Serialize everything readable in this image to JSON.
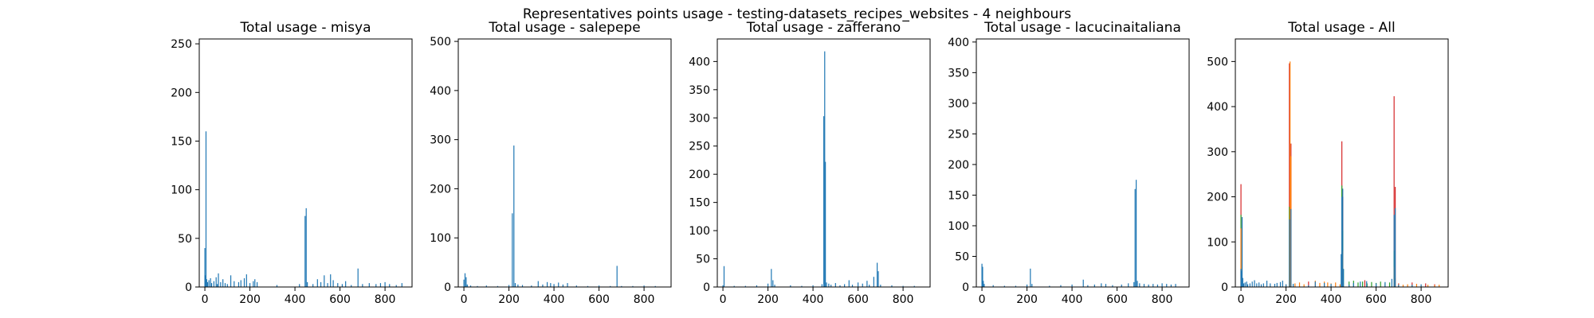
{
  "figure": {
    "title": "Representatives points usage - testing-datasets_recipes_websites - 4 neighbours"
  },
  "colors": {
    "blue": "#1f77b4",
    "orange": "#ff7f0e",
    "green": "#2ca02c",
    "red": "#d62728"
  },
  "chart_data": [
    {
      "type": "bar",
      "title": "Total usage - misya",
      "xlim": [
        -25,
        920
      ],
      "ylim": [
        0,
        255
      ],
      "xticks": [
        0,
        200,
        400,
        600,
        800
      ],
      "yticks": [
        0,
        50,
        100,
        150,
        200,
        250
      ],
      "series": [
        {
          "color": "blue",
          "bars": [
            [
              0,
              40
            ],
            [
              2,
              12
            ],
            [
              5,
              160
            ],
            [
              8,
              8
            ],
            [
              12,
              5
            ],
            [
              18,
              7
            ],
            [
              25,
              9
            ],
            [
              30,
              4
            ],
            [
              40,
              6
            ],
            [
              50,
              10
            ],
            [
              55,
              3
            ],
            [
              60,
              14
            ],
            [
              70,
              5
            ],
            [
              80,
              8
            ],
            [
              90,
              4
            ],
            [
              100,
              3
            ],
            [
              115,
              12
            ],
            [
              130,
              6
            ],
            [
              150,
              5
            ],
            [
              160,
              7
            ],
            [
              175,
              9
            ],
            [
              185,
              13
            ],
            [
              200,
              4
            ],
            [
              215,
              6
            ],
            [
              222,
              8
            ],
            [
              232,
              5
            ],
            [
              320,
              2
            ],
            [
              420,
              3
            ],
            [
              445,
              73
            ],
            [
              450,
              81
            ],
            [
              455,
              5
            ],
            [
              480,
              3
            ],
            [
              500,
              8
            ],
            [
              515,
              5
            ],
            [
              530,
              12
            ],
            [
              545,
              4
            ],
            [
              558,
              13
            ],
            [
              570,
              7
            ],
            [
              590,
              4
            ],
            [
              610,
              3
            ],
            [
              625,
              6
            ],
            [
              650,
              2
            ],
            [
              680,
              19
            ],
            [
              700,
              3
            ],
            [
              730,
              4
            ],
            [
              760,
              3
            ],
            [
              780,
              4
            ],
            [
              800,
              5
            ],
            [
              820,
              3
            ],
            [
              850,
              2
            ],
            [
              875,
              4
            ]
          ]
        }
      ]
    },
    {
      "type": "bar",
      "title": "Total usage - salepepe",
      "xlim": [
        -25,
        920
      ],
      "ylim": [
        0,
        505
      ],
      "xticks": [
        0,
        200,
        400,
        600,
        800
      ],
      "yticks": [
        0,
        100,
        200,
        300,
        400,
        500
      ],
      "series": [
        {
          "color": "blue",
          "bars": [
            [
              0,
              15
            ],
            [
              5,
              28
            ],
            [
              10,
              20
            ],
            [
              15,
              5
            ],
            [
              30,
              3
            ],
            [
              60,
              2
            ],
            [
              100,
              3
            ],
            [
              150,
              2
            ],
            [
              200,
              4
            ],
            [
              215,
              150
            ],
            [
              222,
              288
            ],
            [
              228,
              8
            ],
            [
              240,
              5
            ],
            [
              260,
              4
            ],
            [
              300,
              3
            ],
            [
              330,
              12
            ],
            [
              350,
              5
            ],
            [
              370,
              10
            ],
            [
              385,
              8
            ],
            [
              400,
              6
            ],
            [
              420,
              9
            ],
            [
              440,
              5
            ],
            [
              460,
              8
            ],
            [
              500,
              3
            ],
            [
              550,
              2
            ],
            [
              600,
              3
            ],
            [
              650,
              2
            ],
            [
              680,
              43
            ],
            [
              700,
              2
            ],
            [
              750,
              2
            ],
            [
              800,
              3
            ],
            [
              850,
              2
            ]
          ]
        }
      ]
    },
    {
      "type": "bar",
      "title": "Total usage - zafferano",
      "xlim": [
        -25,
        920
      ],
      "ylim": [
        0,
        440
      ],
      "xticks": [
        0,
        200,
        400,
        600,
        800
      ],
      "yticks": [
        0,
        50,
        100,
        150,
        200,
        250,
        300,
        350,
        400
      ],
      "series": [
        {
          "color": "blue",
          "bars": [
            [
              0,
              3
            ],
            [
              5,
              37
            ],
            [
              50,
              2
            ],
            [
              100,
              2
            ],
            [
              150,
              3
            ],
            [
              200,
              6
            ],
            [
              215,
              32
            ],
            [
              222,
              12
            ],
            [
              230,
              4
            ],
            [
              300,
              3
            ],
            [
              350,
              2
            ],
            [
              400,
              3
            ],
            [
              440,
              5
            ],
            [
              448,
              303
            ],
            [
              452,
              418
            ],
            [
              455,
              222
            ],
            [
              460,
              8
            ],
            [
              470,
              6
            ],
            [
              480,
              4
            ],
            [
              500,
              7
            ],
            [
              520,
              3
            ],
            [
              540,
              5
            ],
            [
              560,
              12
            ],
            [
              575,
              4
            ],
            [
              600,
              8
            ],
            [
              620,
              6
            ],
            [
              640,
              11
            ],
            [
              650,
              4
            ],
            [
              670,
              18
            ],
            [
              685,
              43
            ],
            [
              690,
              28
            ],
            [
              700,
              4
            ],
            [
              750,
              3
            ],
            [
              800,
              2
            ],
            [
              850,
              2
            ]
          ]
        }
      ]
    },
    {
      "type": "bar",
      "title": "Total usage - lacucinaitaliana",
      "xlim": [
        -25,
        920
      ],
      "ylim": [
        0,
        405
      ],
      "xticks": [
        0,
        200,
        400,
        600,
        800
      ],
      "yticks": [
        0,
        50,
        100,
        150,
        200,
        250,
        300,
        350,
        400
      ],
      "series": [
        {
          "color": "blue",
          "bars": [
            [
              0,
              38
            ],
            [
              3,
              33
            ],
            [
              6,
              10
            ],
            [
              10,
              5
            ],
            [
              50,
              3
            ],
            [
              100,
              2
            ],
            [
              150,
              2
            ],
            [
              200,
              4
            ],
            [
              215,
              30
            ],
            [
              222,
              5
            ],
            [
              300,
              2
            ],
            [
              350,
              3
            ],
            [
              400,
              4
            ],
            [
              450,
              12
            ],
            [
              470,
              3
            ],
            [
              500,
              4
            ],
            [
              530,
              6
            ],
            [
              550,
              5
            ],
            [
              580,
              3
            ],
            [
              620,
              4
            ],
            [
              650,
              6
            ],
            [
              675,
              8
            ],
            [
              680,
              160
            ],
            [
              685,
              175
            ],
            [
              690,
              10
            ],
            [
              700,
              6
            ],
            [
              720,
              5
            ],
            [
              740,
              4
            ],
            [
              760,
              5
            ],
            [
              780,
              4
            ],
            [
              800,
              6
            ],
            [
              820,
              5
            ],
            [
              840,
              4
            ],
            [
              860,
              5
            ]
          ]
        }
      ]
    },
    {
      "type": "bar",
      "title": "Total usage - All",
      "xlim": [
        -25,
        920
      ],
      "ylim": [
        0,
        550
      ],
      "xticks": [
        0,
        200,
        400,
        600,
        800
      ],
      "yticks": [
        0,
        100,
        200,
        300,
        400,
        500
      ],
      "series": [
        {
          "color": "red",
          "bars": [
            [
              0,
              228
            ],
            [
              215,
              496
            ],
            [
              222,
              318
            ],
            [
              448,
              323
            ],
            [
              452,
              200
            ],
            [
              680,
              423
            ],
            [
              685,
              222
            ],
            [
              300,
              12
            ],
            [
              550,
              15
            ],
            [
              700,
              8
            ],
            [
              760,
              10
            ],
            [
              820,
              8
            ],
            [
              860,
              6
            ]
          ]
        },
        {
          "color": "green",
          "bars": [
            [
              0,
              160
            ],
            [
              215,
              178
            ],
            [
              222,
              15
            ],
            [
              448,
              225
            ],
            [
              452,
              125
            ],
            [
              455,
              40
            ],
            [
              480,
              12
            ],
            [
              500,
              14
            ],
            [
              520,
              10
            ],
            [
              540,
              12
            ],
            [
              560,
              8
            ],
            [
              580,
              11
            ],
            [
              600,
              9
            ],
            [
              620,
              12
            ],
            [
              640,
              8
            ],
            [
              660,
              10
            ],
            [
              680,
              80
            ]
          ]
        },
        {
          "color": "orange",
          "bars": [
            [
              0,
              130
            ],
            [
              200,
              6
            ],
            [
              218,
              500
            ],
            [
              222,
              290
            ],
            [
              240,
              8
            ],
            [
              260,
              10
            ],
            [
              280,
              6
            ],
            [
              330,
              14
            ],
            [
              350,
              9
            ],
            [
              370,
              12
            ],
            [
              385,
              10
            ],
            [
              400,
              8
            ],
            [
              420,
              10
            ],
            [
              440,
              6
            ],
            [
              448,
              40
            ],
            [
              452,
              80
            ],
            [
              680,
              45
            ],
            [
              685,
              20
            ],
            [
              700,
              6
            ],
            [
              720,
              5
            ],
            [
              740,
              6
            ],
            [
              760,
              5
            ],
            [
              780,
              7
            ],
            [
              800,
              4
            ],
            [
              830,
              5
            ],
            [
              860,
              4
            ],
            [
              880,
              5
            ]
          ]
        },
        {
          "color": "blue",
          "bars": [
            [
              0,
              40
            ],
            [
              3,
              35
            ],
            [
              5,
              155
            ],
            [
              8,
              20
            ],
            [
              12,
              8
            ],
            [
              18,
              10
            ],
            [
              25,
              12
            ],
            [
              30,
              6
            ],
            [
              40,
              8
            ],
            [
              50,
              12
            ],
            [
              60,
              15
            ],
            [
              70,
              8
            ],
            [
              80,
              10
            ],
            [
              90,
              6
            ],
            [
              100,
              8
            ],
            [
              115,
              14
            ],
            [
              130,
              8
            ],
            [
              150,
              7
            ],
            [
              160,
              9
            ],
            [
              175,
              11
            ],
            [
              185,
              14
            ],
            [
              200,
              6
            ],
            [
              215,
              150
            ],
            [
              222,
              173
            ],
            [
              232,
              7
            ],
            [
              300,
              4
            ],
            [
              330,
              12
            ],
            [
              370,
              9
            ],
            [
              400,
              7
            ],
            [
              445,
              73
            ],
            [
              448,
              200
            ],
            [
              452,
              218
            ],
            [
              455,
              40
            ],
            [
              480,
              5
            ],
            [
              500,
              9
            ],
            [
              530,
              12
            ],
            [
              558,
              13
            ],
            [
              600,
              8
            ],
            [
              640,
              11
            ],
            [
              670,
              18
            ],
            [
              680,
              160
            ],
            [
              685,
              175
            ],
            [
              700,
              5
            ],
            [
              760,
              5
            ],
            [
              800,
              6
            ]
          ]
        }
      ]
    }
  ]
}
